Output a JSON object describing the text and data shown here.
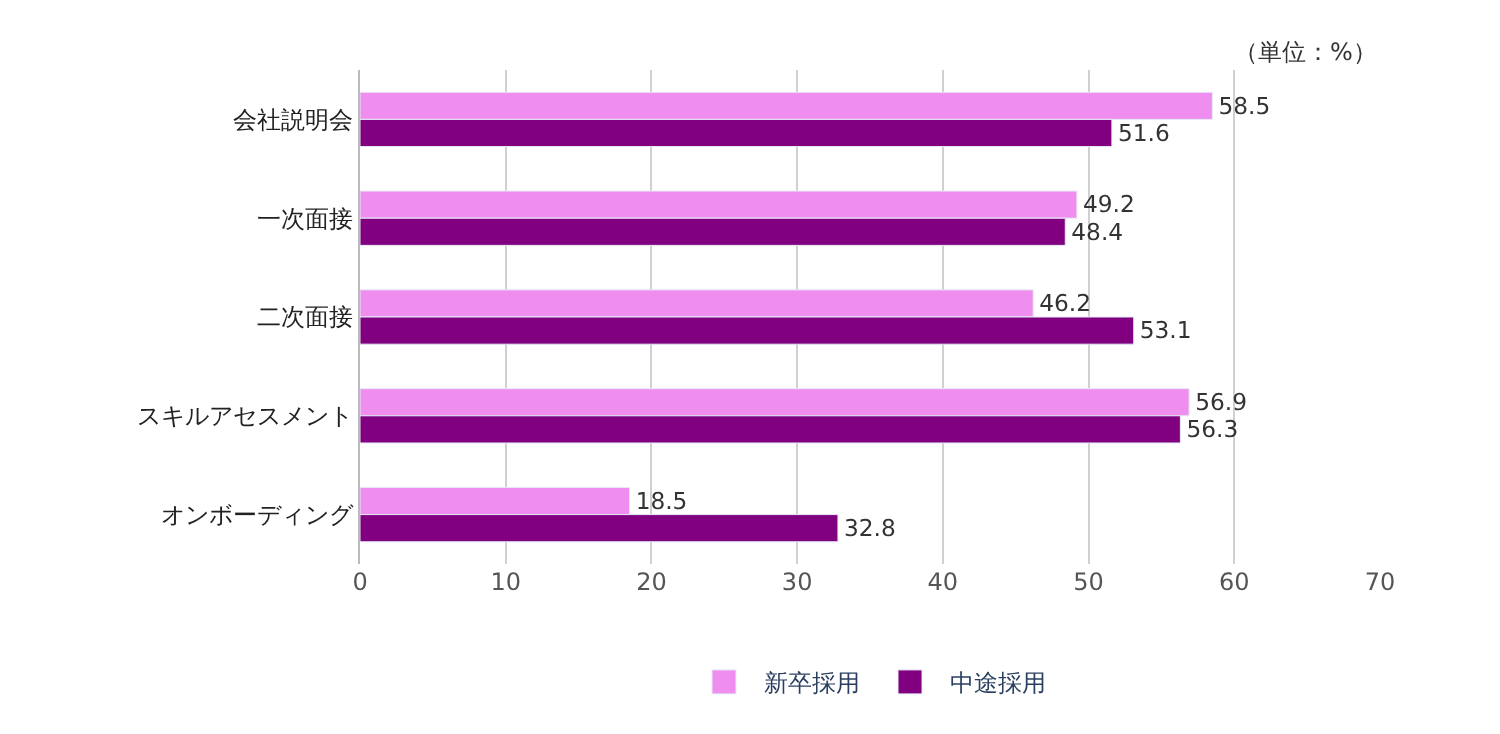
{
  "chart_data": {
    "type": "bar",
    "orientation": "horizontal",
    "categories": [
      "会社説明会",
      "一次面接",
      "二次面接",
      "スキルアセスメント",
      "オンボーディング"
    ],
    "series": [
      {
        "name": "新卒採用",
        "color": "#f08ef0",
        "values": [
          58.5,
          49.2,
          46.2,
          56.9,
          18.5
        ]
      },
      {
        "name": "中途採用",
        "color": "#800080",
        "values": [
          51.6,
          48.4,
          53.1,
          56.3,
          32.8
        ]
      }
    ],
    "xlim": [
      0,
      70
    ],
    "xticks": [
      0,
      10,
      20,
      30,
      40,
      50,
      60,
      70
    ],
    "grid": "x",
    "legend": "bottom",
    "data_labels": true,
    "annotations": [
      "（単位：%）"
    ]
  }
}
